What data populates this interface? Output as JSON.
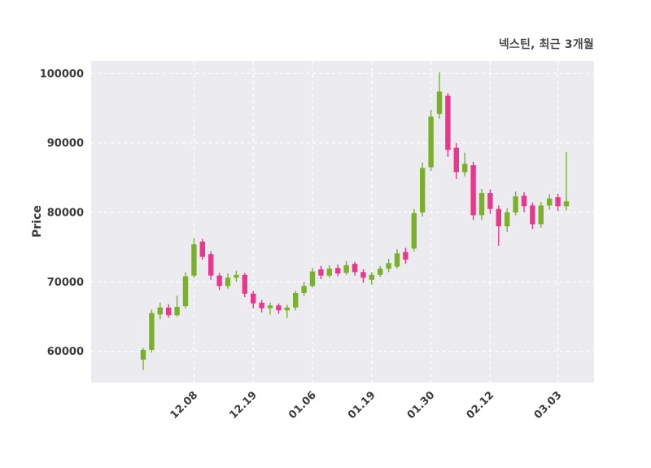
{
  "title": "넥스틴, 최근 3개월",
  "colors": {
    "up": "#7bb02c",
    "down": "#e8388d",
    "plot_bg": "#ebebf0",
    "grid": "#ffffff",
    "text": "#3c3c3c"
  },
  "chart_data": {
    "type": "candlestick",
    "title": "넥스틴, 최근 3개월",
    "ylabel": "Price",
    "ylim": [
      55500,
      101800
    ],
    "yticks": [
      60000,
      70000,
      80000,
      90000,
      100000
    ],
    "grid": "white dashed on light gray",
    "legend": "none",
    "xticks": [
      {
        "i": 6,
        "label": "12.08"
      },
      {
        "i": 13,
        "label": "12.19"
      },
      {
        "i": 20,
        "label": "01.06"
      },
      {
        "i": 27,
        "label": "01.19"
      },
      {
        "i": 34,
        "label": "01.30"
      },
      {
        "i": 41,
        "label": "02.12"
      },
      {
        "i": 49,
        "label": "03.03"
      }
    ],
    "candles_format": [
      "open",
      "high",
      "low",
      "close"
    ],
    "candles": [
      [
        58800,
        60500,
        57300,
        60200
      ],
      [
        60200,
        66000,
        59800,
        65500
      ],
      [
        65300,
        67000,
        64600,
        66300
      ],
      [
        66300,
        66800,
        64800,
        65200
      ],
      [
        65200,
        68000,
        65000,
        66400
      ],
      [
        66500,
        71400,
        66200,
        70800
      ],
      [
        70900,
        76300,
        70600,
        75400
      ],
      [
        75800,
        76200,
        73200,
        73600
      ],
      [
        74000,
        74400,
        70300,
        70900
      ],
      [
        70900,
        71300,
        68800,
        69400
      ],
      [
        69400,
        71200,
        69000,
        70600
      ],
      [
        70600,
        71600,
        70000,
        71000
      ],
      [
        71000,
        71300,
        67800,
        68300
      ],
      [
        68300,
        68700,
        66200,
        66900
      ],
      [
        67000,
        67400,
        65600,
        66200
      ],
      [
        66200,
        67000,
        65300,
        66600
      ],
      [
        66600,
        66900,
        65400,
        65900
      ],
      [
        65900,
        66700,
        64800,
        66300
      ],
      [
        66300,
        68700,
        65900,
        68400
      ],
      [
        68400,
        70000,
        68000,
        69400
      ],
      [
        69400,
        72000,
        69200,
        71500
      ],
      [
        71800,
        72300,
        70400,
        70900
      ],
      [
        70900,
        72400,
        70600,
        71900
      ],
      [
        72000,
        72500,
        70800,
        71200
      ],
      [
        71300,
        73000,
        71000,
        72400
      ],
      [
        72600,
        72900,
        70900,
        71400
      ],
      [
        71400,
        71800,
        69900,
        70600
      ],
      [
        70300,
        71400,
        69600,
        71000
      ],
      [
        71000,
        72300,
        70700,
        71900
      ],
      [
        71900,
        73300,
        71400,
        72700
      ],
      [
        72200,
        74700,
        71900,
        74100
      ],
      [
        74300,
        74900,
        72600,
        73200
      ],
      [
        74800,
        80500,
        74400,
        79900
      ],
      [
        80000,
        87200,
        79400,
        86400
      ],
      [
        86500,
        94800,
        86000,
        93800
      ],
      [
        94200,
        100200,
        93500,
        97400
      ],
      [
        96800,
        97200,
        88000,
        89000
      ],
      [
        89300,
        90000,
        84800,
        85800
      ],
      [
        85800,
        88600,
        85200,
        87000
      ],
      [
        86800,
        87300,
        78900,
        79600
      ],
      [
        79600,
        83400,
        78900,
        82800
      ],
      [
        82800,
        83300,
        79800,
        80500
      ],
      [
        80500,
        81000,
        75200,
        78000
      ],
      [
        78000,
        80600,
        77200,
        80000
      ],
      [
        80000,
        83000,
        79600,
        82300
      ],
      [
        82400,
        82900,
        80000,
        80900
      ],
      [
        81000,
        81400,
        77600,
        78300
      ],
      [
        78300,
        81500,
        77800,
        81000
      ],
      [
        81000,
        82600,
        80400,
        82000
      ],
      [
        82200,
        82700,
        80200,
        80900
      ],
      [
        80900,
        88700,
        80300,
        81600
      ]
    ]
  }
}
